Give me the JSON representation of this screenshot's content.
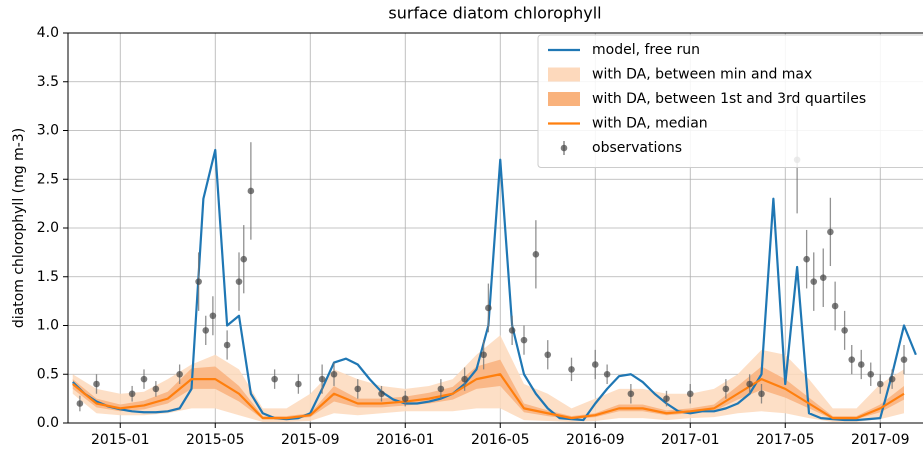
{
  "chart_data": {
    "type": "line",
    "title": "surface diatom chlorophyll",
    "y_label": "diatom chlorophyll (mg m-3)",
    "xlim": [
      -2.2,
      33.8
    ],
    "ylim": [
      0,
      4
    ],
    "xticks": [
      {
        "value": 0,
        "label": "2015-01"
      },
      {
        "value": 4,
        "label": "2015-05"
      },
      {
        "value": 8,
        "label": "2015-09"
      },
      {
        "value": 12,
        "label": "2016-01"
      },
      {
        "value": 16,
        "label": "2016-05"
      },
      {
        "value": 20,
        "label": "2016-09"
      },
      {
        "value": 24,
        "label": "2017-01"
      },
      {
        "value": 28,
        "label": "2017-05"
      },
      {
        "value": 32,
        "label": "2017-09"
      }
    ],
    "yticks": [
      {
        "value": 0,
        "label": "0.0"
      },
      {
        "value": 0.5,
        "label": "0.5"
      },
      {
        "value": 1,
        "label": "1.0"
      },
      {
        "value": 1.5,
        "label": "1.5"
      },
      {
        "value": 2,
        "label": "2.0"
      },
      {
        "value": 2.5,
        "label": "2.5"
      },
      {
        "value": 3,
        "label": "3.0"
      },
      {
        "value": 3.5,
        "label": "3.5"
      },
      {
        "value": 4,
        "label": "4.0"
      }
    ],
    "grid": true,
    "legend": "upper right",
    "series": [
      {
        "name": "model, free run",
        "style": "line",
        "color": "#1f77b4",
        "x": [
          -2,
          -1.5,
          -1,
          -0.5,
          0,
          0.5,
          1,
          1.5,
          2,
          2.5,
          3,
          3.5,
          4,
          4.5,
          5,
          5.5,
          6,
          6.5,
          7,
          7.5,
          8,
          8.5,
          9,
          9.5,
          10,
          10.5,
          11,
          11.5,
          12,
          12.5,
          13,
          13.5,
          14,
          14.5,
          15,
          15.5,
          16,
          16.5,
          17,
          17.5,
          18,
          18.5,
          19,
          19.5,
          20,
          20.5,
          21,
          21.5,
          22,
          22.5,
          23,
          23.5,
          24,
          24.5,
          25,
          25.5,
          26,
          26.5,
          27,
          27.5,
          28,
          28.5,
          29,
          29.5,
          30,
          30.5,
          31,
          31.5,
          32,
          32.5,
          33,
          33.5
        ],
        "values": [
          0.42,
          0.3,
          0.22,
          0.17,
          0.14,
          0.12,
          0.11,
          0.11,
          0.12,
          0.15,
          0.35,
          2.3,
          2.8,
          1.0,
          1.1,
          0.3,
          0.1,
          0.05,
          0.04,
          0.05,
          0.1,
          0.35,
          0.62,
          0.66,
          0.6,
          0.45,
          0.32,
          0.24,
          0.2,
          0.2,
          0.22,
          0.25,
          0.3,
          0.4,
          0.55,
          1.0,
          2.7,
          1.0,
          0.5,
          0.3,
          0.15,
          0.05,
          0.04,
          0.03,
          0.2,
          0.35,
          0.48,
          0.5,
          0.42,
          0.3,
          0.2,
          0.12,
          0.1,
          0.12,
          0.12,
          0.15,
          0.2,
          0.3,
          0.5,
          2.3,
          0.4,
          1.6,
          0.1,
          0.05,
          0.04,
          0.03,
          0.03,
          0.04,
          0.05,
          0.5,
          1.0,
          0.7
        ]
      },
      {
        "name": "with DA, between min and max",
        "style": "band",
        "color": "#fdd9bc",
        "x": [
          -2,
          -1,
          0,
          1,
          2,
          3,
          4,
          5,
          6,
          7,
          8,
          9,
          10,
          11,
          12,
          13,
          14,
          15,
          16,
          17,
          18,
          19,
          20,
          21,
          22,
          23,
          24,
          25,
          26,
          27,
          28,
          29,
          30,
          31,
          32,
          33
        ],
        "lower": [
          0.3,
          0.1,
          0.08,
          0.08,
          0.1,
          0.15,
          0.15,
          0.08,
          0.01,
          0.01,
          0.02,
          0.1,
          0.08,
          0.1,
          0.12,
          0.12,
          0.12,
          0.15,
          0.15,
          0.03,
          0.02,
          0.01,
          0.02,
          0.05,
          0.05,
          0.03,
          0.05,
          0.06,
          0.1,
          0.12,
          0.1,
          0.05,
          0.01,
          0.01,
          0.04,
          0.1
        ],
        "upper": [
          0.5,
          0.35,
          0.3,
          0.32,
          0.45,
          0.6,
          0.7,
          0.55,
          0.15,
          0.15,
          0.3,
          0.55,
          0.45,
          0.38,
          0.35,
          0.38,
          0.45,
          0.7,
          0.9,
          0.4,
          0.3,
          0.15,
          0.25,
          0.35,
          0.35,
          0.3,
          0.3,
          0.35,
          0.5,
          0.75,
          0.7,
          0.45,
          0.15,
          0.15,
          0.4,
          0.55
        ]
      },
      {
        "name": "with DA, between 1st and 3rd quartiles",
        "style": "band",
        "color": "#f9b27c",
        "x": [
          -2,
          -1,
          0,
          1,
          2,
          3,
          4,
          5,
          6,
          7,
          8,
          9,
          10,
          11,
          12,
          13,
          14,
          15,
          16,
          17,
          18,
          19,
          20,
          21,
          22,
          23,
          24,
          25,
          26,
          27,
          28,
          29,
          30,
          31,
          32,
          33
        ],
        "lower": [
          0.35,
          0.16,
          0.12,
          0.14,
          0.2,
          0.35,
          0.35,
          0.22,
          0.04,
          0.04,
          0.06,
          0.22,
          0.16,
          0.16,
          0.18,
          0.2,
          0.24,
          0.35,
          0.38,
          0.11,
          0.07,
          0.04,
          0.06,
          0.12,
          0.12,
          0.08,
          0.1,
          0.12,
          0.24,
          0.34,
          0.26,
          0.15,
          0.04,
          0.04,
          0.11,
          0.24
        ],
        "upper": [
          0.45,
          0.25,
          0.19,
          0.23,
          0.32,
          0.56,
          0.58,
          0.38,
          0.07,
          0.07,
          0.1,
          0.38,
          0.25,
          0.25,
          0.27,
          0.31,
          0.37,
          0.58,
          0.65,
          0.2,
          0.13,
          0.07,
          0.1,
          0.19,
          0.19,
          0.13,
          0.15,
          0.19,
          0.38,
          0.58,
          0.45,
          0.26,
          0.07,
          0.07,
          0.19,
          0.38
        ]
      },
      {
        "name": "with DA, median",
        "style": "line",
        "color": "#ff7f0e",
        "x": [
          -2,
          -1,
          0,
          1,
          2,
          3,
          4,
          5,
          6,
          7,
          8,
          9,
          10,
          11,
          12,
          13,
          14,
          15,
          16,
          17,
          18,
          19,
          20,
          21,
          22,
          23,
          24,
          25,
          26,
          27,
          28,
          29,
          30,
          31,
          32,
          33
        ],
        "values": [
          0.4,
          0.2,
          0.15,
          0.18,
          0.25,
          0.45,
          0.45,
          0.3,
          0.05,
          0.05,
          0.08,
          0.3,
          0.2,
          0.2,
          0.22,
          0.25,
          0.3,
          0.45,
          0.5,
          0.15,
          0.1,
          0.05,
          0.08,
          0.15,
          0.15,
          0.1,
          0.12,
          0.15,
          0.3,
          0.45,
          0.35,
          0.2,
          0.05,
          0.05,
          0.15,
          0.3
        ]
      },
      {
        "name": "observations",
        "style": "points",
        "color": "#444444",
        "x": [
          -1.7,
          -1,
          0.5,
          1,
          1.5,
          2.5,
          3.3,
          3.6,
          3.9,
          4.5,
          5,
          5.2,
          5.5,
          6.5,
          7.5,
          8.5,
          9,
          10,
          11,
          12,
          13.5,
          14.5,
          15.3,
          15.5,
          16.5,
          17,
          17.5,
          18,
          19,
          20,
          20.5,
          21.5,
          23,
          24,
          25.5,
          26.5,
          27,
          28.5,
          28.9,
          29.2,
          29.6,
          29.9,
          30.1,
          30.5,
          30.8,
          31.2,
          31.6,
          32,
          32.5,
          33
        ],
        "values": [
          0.2,
          0.4,
          0.3,
          0.45,
          0.35,
          0.5,
          1.45,
          0.95,
          1.1,
          0.8,
          1.45,
          1.68,
          2.38,
          0.45,
          0.4,
          0.45,
          0.5,
          0.35,
          0.3,
          0.25,
          0.35,
          0.45,
          0.7,
          1.18,
          0.95,
          0.85,
          1.73,
          0.7,
          0.55,
          0.6,
          0.5,
          0.3,
          0.25,
          0.3,
          0.35,
          0.4,
          0.3,
          2.7,
          1.68,
          1.45,
          1.49,
          1.96,
          1.2,
          0.95,
          0.65,
          0.6,
          0.5,
          0.4,
          0.45,
          0.65
        ],
        "errors": [
          0.08,
          0.1,
          0.08,
          0.1,
          0.08,
          0.1,
          0.3,
          0.15,
          0.2,
          0.15,
          0.3,
          0.35,
          0.5,
          0.1,
          0.1,
          0.15,
          0.12,
          0.1,
          0.08,
          0.08,
          0.1,
          0.12,
          0.15,
          0.25,
          0.15,
          0.15,
          0.35,
          0.15,
          0.12,
          0.15,
          0.1,
          0.1,
          0.08,
          0.1,
          0.1,
          0.1,
          0.1,
          0.55,
          0.3,
          0.3,
          0.3,
          0.35,
          0.25,
          0.2,
          0.15,
          0.15,
          0.12,
          0.1,
          0.1,
          0.15
        ]
      }
    ]
  }
}
